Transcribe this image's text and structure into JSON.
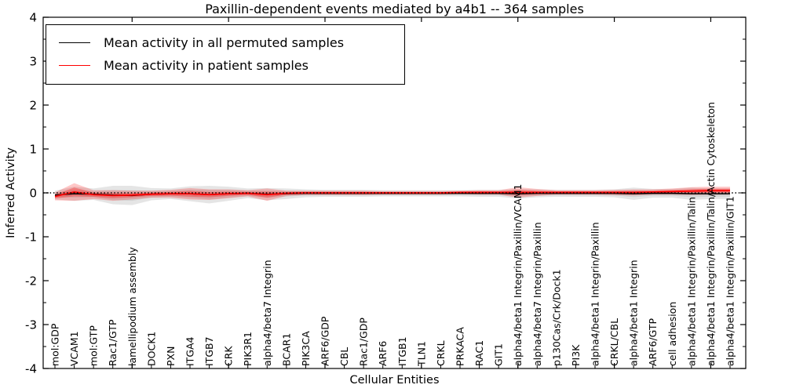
{
  "chart_data": {
    "type": "line",
    "title": "Paxillin-dependent events mediated by a4b1 -- 364 samples",
    "xlabel": "Cellular Entities",
    "ylabel": "Inferred Activity",
    "ylim": [
      -4,
      4
    ],
    "yticks": [
      4,
      3,
      2,
      1,
      0,
      -1,
      -2,
      -3,
      -4
    ],
    "y_minor_step": 0.5,
    "x_major_tick_indices": [
      4,
      9,
      14,
      19,
      24,
      29,
      34
    ],
    "grid": false,
    "legend": {
      "position": "upper left",
      "entries": [
        {
          "label": "Mean activity in all permuted samples",
          "color": "#000000"
        },
        {
          "label": "Mean activity in patient samples",
          "color": "#ff0000"
        }
      ]
    },
    "categories": [
      "mol:GDP",
      "VCAM1",
      "mol:GTP",
      "Rac1/GTP",
      "lamellipodium assembly",
      "DOCK1",
      "PXN",
      "ITGA4",
      "ITGB7",
      "CRK",
      "PIK3R1",
      "alpha4/beta7 Integrin",
      "BCAR1",
      "PIK3CA",
      "ARF6/GDP",
      "CBL",
      "Rac1/GDP",
      "ARF6",
      "ITGB1",
      "TLN1",
      "CRKL",
      "PRKACA",
      "RAC1",
      "GIT1",
      "alpha4/beta1 Integrin/Paxillin/VCAM1",
      "alpha4/beta7 Integrin/Paxillin",
      "p130Cas/Crk/Dock1",
      "PI3K",
      "alpha4/beta1 Integrin/Paxillin",
      "CRKL/CBL",
      "alpha4/beta1 Integrin",
      "ARF6/GTP",
      "cell adhesion",
      "alpha4/beta1 Integrin/Paxillin/Talin",
      "alpha4/beta1 Integrin/Paxillin/Talin/Actin Cytoskeleton",
      "alpha4/beta1 Integrin/Paxillin/GIT1"
    ],
    "series": [
      {
        "name": "Mean activity in all permuted samples",
        "color": "#000000",
        "band_color": "#000000",
        "values": [
          -0.05,
          -0.02,
          -0.03,
          -0.05,
          -0.06,
          -0.03,
          -0.02,
          -0.02,
          -0.04,
          -0.02,
          -0.01,
          -0.03,
          -0.02,
          -0.01,
          -0.01,
          -0.01,
          -0.01,
          -0.01,
          -0.01,
          -0.01,
          -0.01,
          -0.01,
          -0.01,
          -0.01,
          -0.02,
          -0.01,
          -0.01,
          -0.01,
          -0.01,
          -0.01,
          -0.02,
          -0.01,
          -0.01,
          -0.02,
          -0.02,
          -0.02
        ],
        "band": [
          0.1,
          0.16,
          0.13,
          0.21,
          0.22,
          0.14,
          0.12,
          0.17,
          0.2,
          0.16,
          0.11,
          0.14,
          0.12,
          0.09,
          0.08,
          0.08,
          0.08,
          0.07,
          0.07,
          0.07,
          0.07,
          0.07,
          0.08,
          0.08,
          0.11,
          0.09,
          0.08,
          0.08,
          0.08,
          0.09,
          0.14,
          0.1,
          0.1,
          0.14,
          0.12,
          0.12
        ]
      },
      {
        "name": "Mean activity in patient samples",
        "color": "#ff0000",
        "band_color": "#ff0000",
        "values": [
          -0.08,
          0.02,
          -0.04,
          -0.06,
          -0.05,
          -0.03,
          -0.02,
          -0.02,
          -0.04,
          -0.02,
          -0.01,
          -0.04,
          -0.01,
          0.0,
          0.0,
          0.0,
          0.0,
          0.0,
          0.0,
          0.0,
          0.0,
          0.01,
          0.01,
          0.01,
          0.01,
          0.01,
          0.01,
          0.01,
          0.01,
          0.01,
          0.01,
          0.02,
          0.03,
          0.04,
          0.05,
          0.05
        ],
        "band": [
          0.09,
          0.2,
          0.1,
          0.12,
          0.1,
          0.08,
          0.09,
          0.13,
          0.12,
          0.1,
          0.07,
          0.14,
          0.06,
          0.05,
          0.05,
          0.05,
          0.05,
          0.04,
          0.04,
          0.04,
          0.04,
          0.04,
          0.05,
          0.05,
          0.12,
          0.08,
          0.05,
          0.05,
          0.05,
          0.06,
          0.07,
          0.06,
          0.07,
          0.09,
          0.09,
          0.09
        ],
        "band_inner": [
          0.045,
          0.1,
          0.05,
          0.06,
          0.05,
          0.04,
          0.045,
          0.065,
          0.06,
          0.05,
          0.035,
          0.07,
          0.03,
          0.025,
          0.025,
          0.025,
          0.025,
          0.02,
          0.02,
          0.02,
          0.02,
          0.02,
          0.025,
          0.025,
          0.06,
          0.04,
          0.025,
          0.025,
          0.025,
          0.03,
          0.035,
          0.03,
          0.035,
          0.045,
          0.045,
          0.045
        ]
      }
    ],
    "zero_line": {
      "y": 0,
      "style": "dotted",
      "color": "#000000"
    }
  }
}
